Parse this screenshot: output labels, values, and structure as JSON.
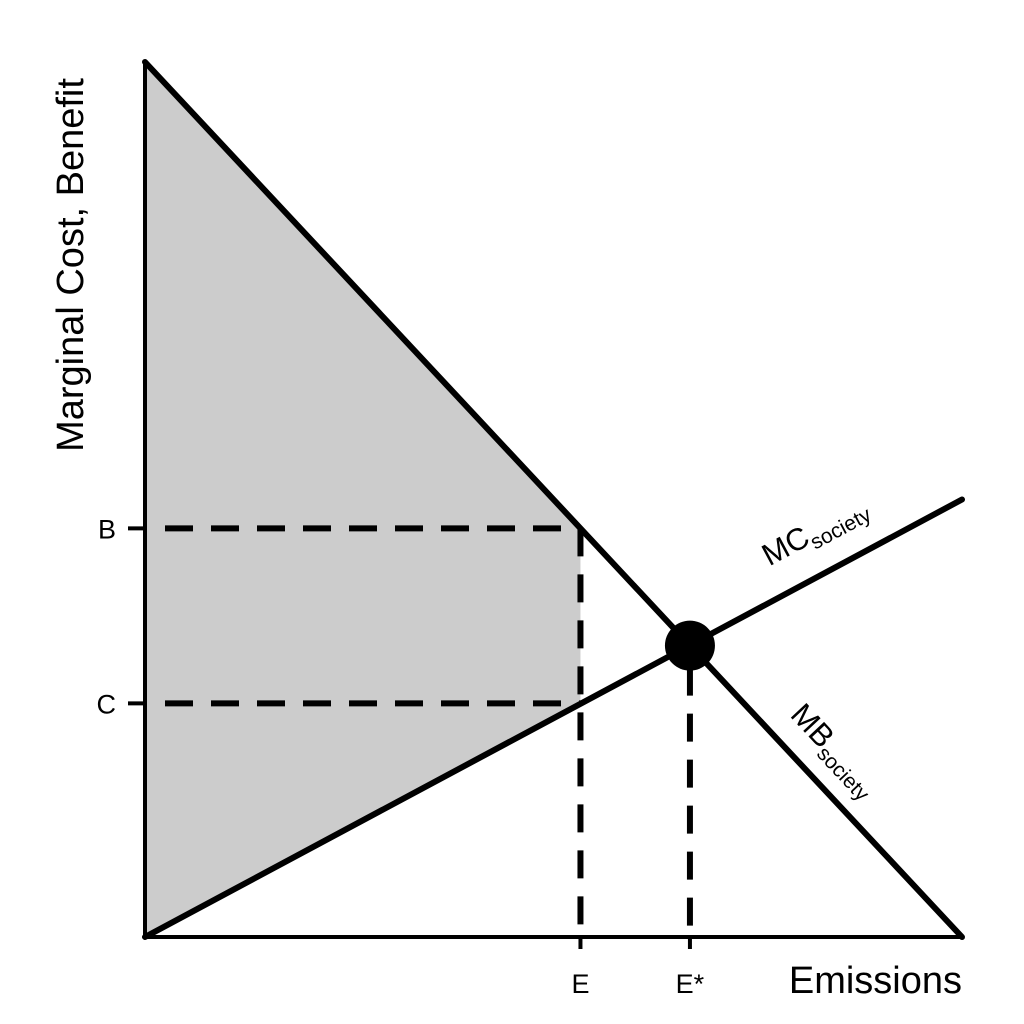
{
  "chart_data": {
    "type": "line",
    "title": "",
    "xlabel": "Emissions",
    "ylabel": "Marginal Cost, Benefit",
    "xlim": [
      0,
      100
    ],
    "ylim": [
      0,
      100
    ],
    "grid": false,
    "legend": "none",
    "series": [
      {
        "name_main": "MB",
        "name_sub": "society",
        "x": [
          0,
          100
        ],
        "y": [
          100,
          0
        ]
      },
      {
        "name_main": "MC",
        "name_sub": "society",
        "x": [
          0,
          100
        ],
        "y": [
          0,
          50
        ]
      }
    ],
    "x_ticks": [
      {
        "label": "E",
        "value": 53.3
      },
      {
        "label": "E*",
        "value": 66.7
      }
    ],
    "y_ticks": [
      {
        "label": "B",
        "value": 46.7
      },
      {
        "label": "C",
        "value": 26.7
      }
    ],
    "equilibrium": {
      "x": 66.7,
      "y": 33.3
    },
    "shaded_region": "between MB and MC from 0 to E",
    "colors": {
      "shade": "#cccccc",
      "line": "#000000"
    }
  }
}
